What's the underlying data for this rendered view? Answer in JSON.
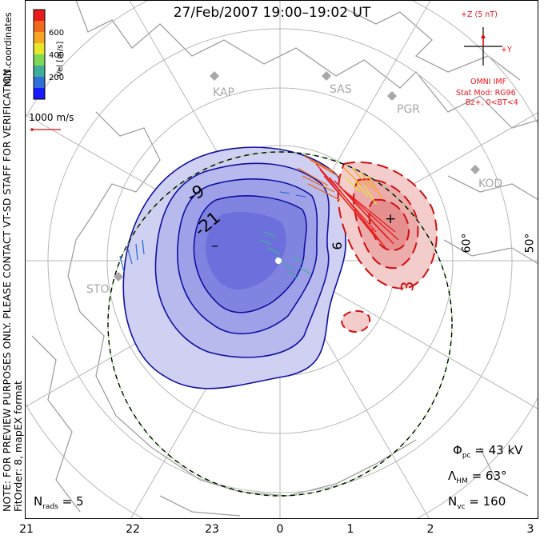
{
  "title": "27/Feb/2007  19:00–19:02  UT",
  "side_note_line1": "NOTE: FOR PREVIEW PURPOSES ONLY. PLEASE CONTACT VT-SD STAFF FOR VERIFICATION.",
  "side_note_line2": "FitOrder: 8, mapEX format",
  "coord_label": "MLT coordinates",
  "colorbar": {
    "label": "Vel [m/s]",
    "ticks": [
      "600",
      "400",
      "200"
    ],
    "colors": [
      "#1a1aff",
      "#2f6fd8",
      "#3fae9a",
      "#7ed957",
      "#e6e62a",
      "#f5a623",
      "#f06a1d",
      "#e81c1c"
    ]
  },
  "ref_vector_label": "1000 m/s",
  "imf": {
    "z_label": "+Z (5 nT)",
    "y_label": "+Y",
    "source": "OMNI IMF",
    "model": "Stat Mod: RG96",
    "condition": "Bz+, 0<BT<4"
  },
  "stations": [
    "KAP",
    "SAS",
    "PGR",
    "KOD",
    "STO"
  ],
  "latitude_labels": [
    "60°",
    "50°"
  ],
  "contour_labels": [
    "-9",
    "-21",
    "9",
    "3",
    "–",
    "+"
  ],
  "stats": {
    "phi_sym": "Φ",
    "phi_sub": "pc",
    "phi_value": "= 43 kV",
    "lambda_sym": "Λ",
    "lambda_sub": "HM",
    "lambda_value": "= 63°",
    "nvc_sym": "N",
    "nvc_sub": "vc",
    "nvc_value": "= 160",
    "nrads_sym": "N",
    "nrads_sub": "rads",
    "nrads_value": "= 5"
  },
  "mlt_axis": [
    "21",
    "22",
    "23",
    "0",
    "1",
    "2",
    "3"
  ],
  "colors": {
    "negative_fill": "#6060e0",
    "negative_line": "#1010a0",
    "positive_fill": "#e85a5a",
    "positive_line": "#d01010",
    "boundary_dash": "#7ed957",
    "coast": "#a0a0a0",
    "grid": "#b8b8b8"
  }
}
